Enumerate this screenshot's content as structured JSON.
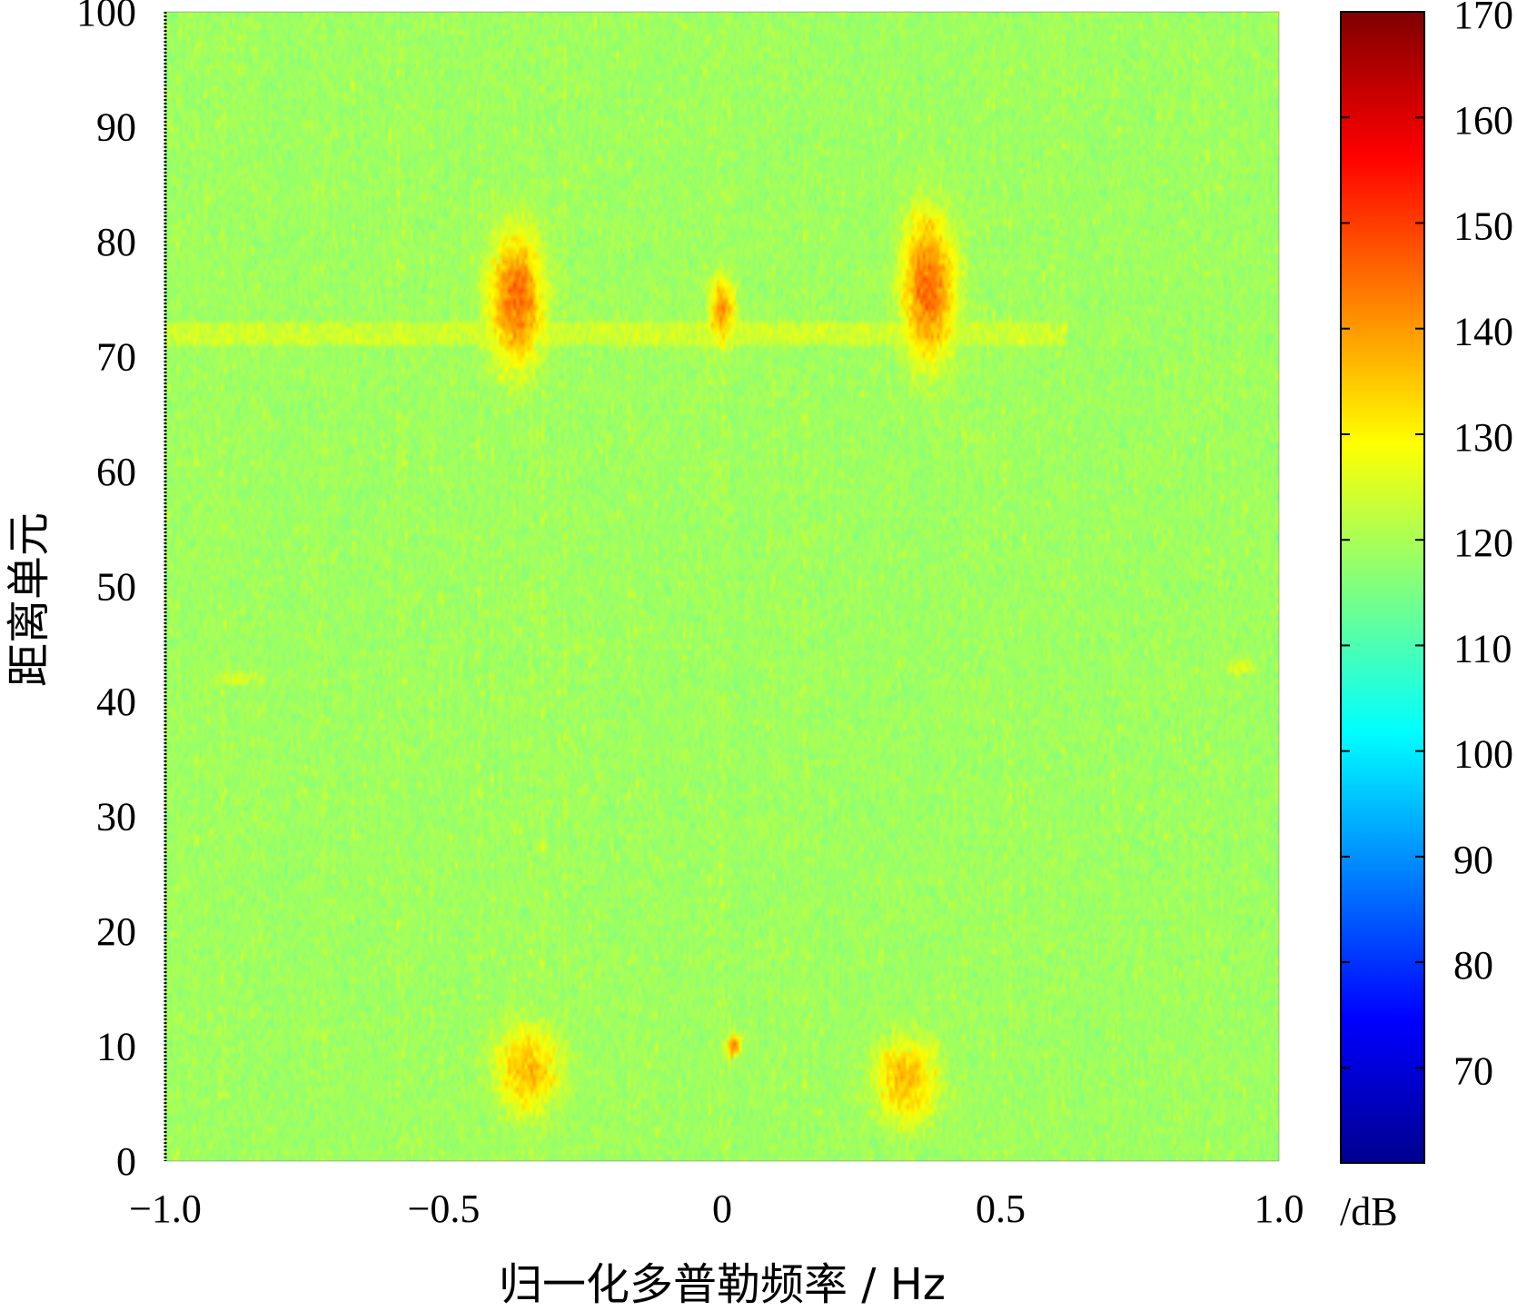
{
  "chart_data": {
    "type": "heatmap",
    "title": "",
    "xlabel": "归一化多普勒频率 / Hz",
    "ylabel": "距离单元",
    "xlim": [
      -1.0,
      1.0
    ],
    "ylim": [
      0,
      100
    ],
    "x_ticks": [
      -1.0,
      -0.5,
      0,
      0.5,
      1.0
    ],
    "x_tick_labels": [
      "−1.0",
      "−0.5",
      "0",
      "0.5",
      "1.0"
    ],
    "y_ticks": [
      0,
      10,
      20,
      30,
      40,
      50,
      60,
      70,
      80,
      90,
      100
    ],
    "y_tick_labels": [
      "0",
      "10",
      "20",
      "30",
      "40",
      "50",
      "60",
      "70",
      "80",
      "90",
      "100"
    ],
    "colorbar": {
      "unit": "/dB",
      "range": [
        61,
        170
      ],
      "ticks": [
        70,
        80,
        90,
        100,
        110,
        120,
        130,
        140,
        150,
        160,
        170
      ],
      "tick_labels": [
        "70",
        "80",
        "90",
        "100",
        "110",
        "120",
        "130",
        "140",
        "150",
        "160",
        "170"
      ],
      "colormap": "jet"
    },
    "background_level_db": 115,
    "features": [
      {
        "x": -0.37,
        "y": 75,
        "peak_db": 145,
        "extent_x": 0.1,
        "extent_y": 12
      },
      {
        "x": 0.37,
        "y": 76,
        "peak_db": 145,
        "extent_x": 0.1,
        "extent_y": 13
      },
      {
        "x": 0.0,
        "y": 74,
        "peak_db": 140,
        "extent_x": 0.05,
        "extent_y": 6
      },
      {
        "x": -0.35,
        "y": 8,
        "peak_db": 137,
        "extent_x": 0.12,
        "extent_y": 8
      },
      {
        "x": 0.33,
        "y": 7,
        "peak_db": 137,
        "extent_x": 0.12,
        "extent_y": 8
      },
      {
        "x": 0.02,
        "y": 10,
        "peak_db": 142,
        "extent_x": 0.03,
        "extent_y": 2
      },
      {
        "x": -0.86,
        "y": 42,
        "peak_db": 128,
        "extent_x": 0.1,
        "extent_y": 1
      },
      {
        "x": 0.93,
        "y": 43,
        "peak_db": 128,
        "extent_x": 0.06,
        "extent_y": 1.5
      }
    ],
    "band": {
      "y_from": 71,
      "y_to": 73,
      "x_from": -1.0,
      "x_to": 0.62,
      "level_db": 128
    }
  }
}
